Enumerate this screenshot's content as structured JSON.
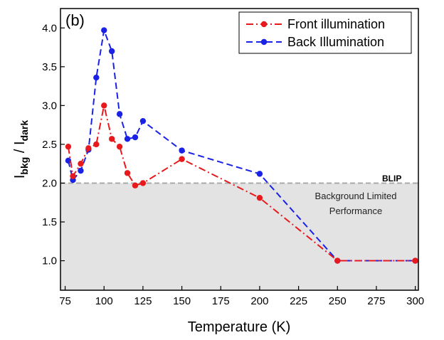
{
  "chart_data": {
    "type": "line",
    "panel_label": "(b)",
    "title": "",
    "xlabel": "Temperature (K)",
    "ylabel_main": "I",
    "ylabel_sub1": "bkg",
    "ylabel_mid": " / I",
    "ylabel_sub2": "dark",
    "xlim": [
      72,
      302
    ],
    "ylim": [
      0.62,
      4.25
    ],
    "xticks": [
      75,
      100,
      125,
      150,
      175,
      200,
      225,
      250,
      275,
      300
    ],
    "yticks": [
      1.0,
      1.5,
      2.0,
      2.5,
      3.0,
      3.5,
      4.0
    ],
    "grid": false,
    "legend_position": "top-right",
    "threshold": {
      "y": 2.0,
      "label": "BLIP",
      "region_label_line1": "Background Limited",
      "region_label_line2": "Performance",
      "fill_color": "#e3e3e3",
      "line_color": "#aaaaaa"
    },
    "series": [
      {
        "name": "Front illumination",
        "color": "#e8191c",
        "dash": "dashdot",
        "x": [
          77,
          80,
          85,
          90,
          95,
          100,
          105,
          110,
          115,
          120,
          125,
          150,
          200,
          250,
          300
        ],
        "y": [
          2.47,
          2.09,
          2.25,
          2.45,
          2.5,
          3.0,
          2.57,
          2.47,
          2.13,
          1.97,
          2.0,
          2.31,
          1.81,
          1.0,
          1.0
        ]
      },
      {
        "name": "Back Illumination",
        "color": "#1a22e6",
        "dash": "dash",
        "x": [
          77,
          80,
          85,
          90,
          95,
          100,
          105,
          110,
          115,
          120,
          125,
          150,
          200,
          250,
          300
        ],
        "y": [
          2.29,
          2.04,
          2.16,
          2.43,
          3.36,
          3.97,
          3.7,
          2.89,
          2.57,
          2.59,
          2.8,
          2.42,
          2.12,
          1.0,
          1.0
        ]
      }
    ]
  }
}
